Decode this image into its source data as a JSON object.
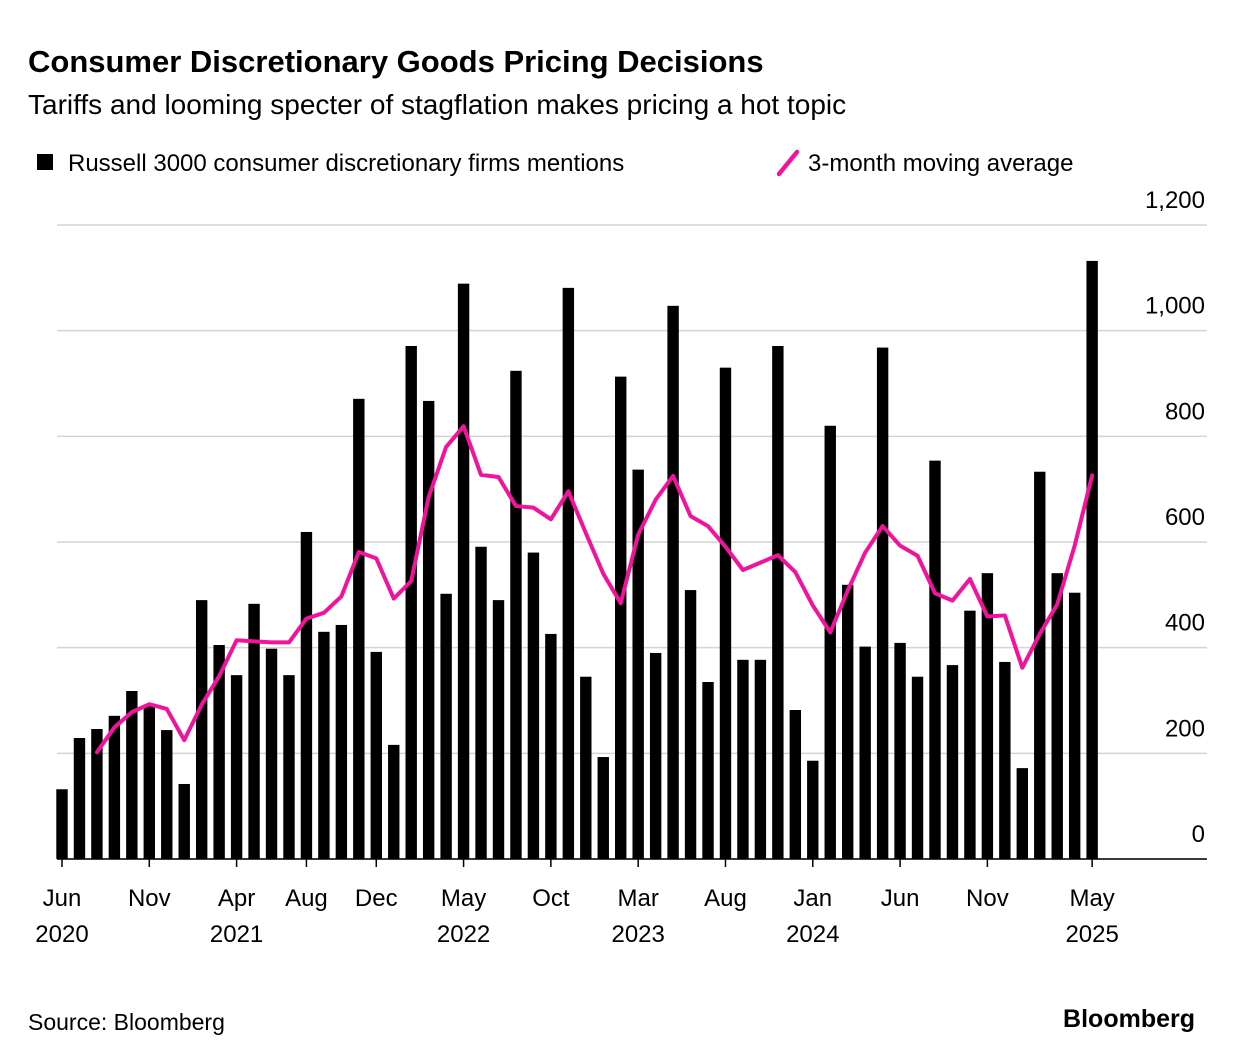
{
  "chart_data": {
    "type": "bar_line",
    "title": "Consumer Discretionary Goods Pricing Decisions",
    "subtitle": "Tariffs and looming specter of stagflation makes pricing a hot topic",
    "source": "Source: Bloomberg",
    "brand": "Bloomberg",
    "categories": [
      "Jun",
      null,
      null,
      null,
      null,
      "Nov",
      null,
      null,
      null,
      null,
      "Apr",
      null,
      null,
      null,
      "Aug",
      null,
      null,
      null,
      "Dec",
      null,
      null,
      null,
      null,
      "May",
      null,
      null,
      null,
      null,
      "Oct",
      null,
      null,
      null,
      null,
      "Mar",
      null,
      null,
      null,
      null,
      "Aug",
      null,
      null,
      null,
      null,
      "Jan",
      null,
      null,
      null,
      null,
      "Jun",
      null,
      null,
      null,
      null,
      "Nov",
      null,
      null,
      null,
      null,
      null,
      "May"
    ],
    "category_years": [
      "2020",
      null,
      null,
      null,
      null,
      null,
      null,
      null,
      null,
      null,
      "2021",
      null,
      null,
      null,
      null,
      null,
      null,
      null,
      null,
      null,
      null,
      null,
      null,
      "2022",
      null,
      null,
      null,
      null,
      null,
      null,
      null,
      null,
      null,
      "2023",
      null,
      null,
      null,
      null,
      null,
      null,
      null,
      null,
      null,
      "2024",
      null,
      null,
      null,
      null,
      null,
      null,
      null,
      null,
      null,
      null,
      null,
      null,
      null,
      null,
      null,
      "2025"
    ],
    "series": [
      {
        "name": "Russell 3000 consumer discretionary firms mentions",
        "kind": "bar",
        "color": "#000000",
        "values": [
          132,
          229,
          246,
          271,
          318,
          290,
          244,
          142,
          490,
          405,
          348,
          483,
          398,
          348,
          619,
          430,
          443,
          871,
          392,
          216,
          971,
          867,
          502,
          1089,
          591,
          490,
          924,
          580,
          426,
          1081,
          345,
          193,
          913,
          737,
          390,
          1047,
          509,
          335,
          930,
          377,
          377,
          971,
          282,
          186,
          820,
          519,
          402,
          968,
          409,
          345,
          754,
          367,
          470,
          541,
          373,
          172,
          733,
          541,
          504,
          1132
        ]
      },
      {
        "name": "3-month moving average",
        "kind": "line",
        "color": "#f2139c",
        "values": [
          null,
          null,
          202,
          249,
          278,
          293,
          284,
          225,
          292,
          346,
          414,
          412,
          410,
          410,
          455,
          466,
          497,
          581,
          569,
          493,
          526,
          685,
          780,
          819,
          727,
          723,
          668,
          665,
          643,
          696,
          617,
          540,
          484,
          614,
          680,
          725,
          649,
          630,
          591,
          547,
          561,
          575,
          543,
          480,
          429,
          508,
          580,
          630,
          593,
          574,
          503,
          489,
          530,
          459,
          461,
          362,
          426,
          482,
          593,
          726
        ]
      }
    ],
    "ylim": [
      0,
      1200
    ],
    "yticks": [
      0,
      200,
      400,
      600,
      800,
      {
        "value": 1000,
        "label": "1,000"
      },
      {
        "value": 1200,
        "label": "1,200"
      }
    ],
    "grid": true,
    "legend": "top-left"
  }
}
